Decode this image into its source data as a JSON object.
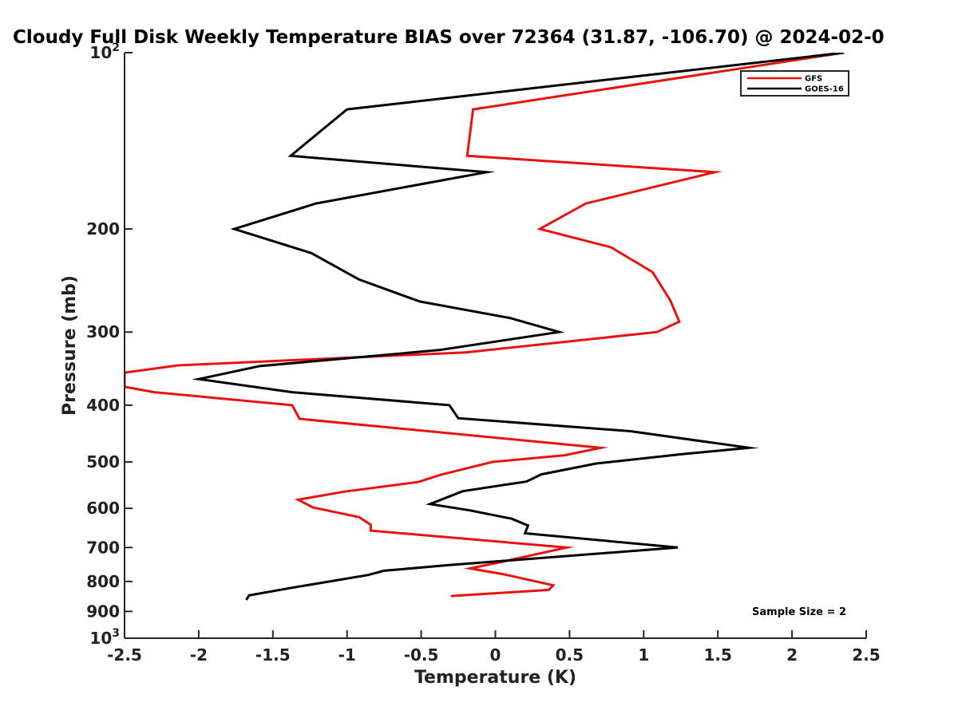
{
  "chart_data": {
    "type": "line",
    "title": "Cloudy Full Disk Weekly Temperature BIAS over 72364 (31.87, -106.70) @ 2024-02-0",
    "xlabel": "Temperature (K)",
    "ylabel": "Pressure (mb)",
    "xlim": [
      -2.5,
      2.5
    ],
    "ylim": [
      100,
      1000
    ],
    "y_scale": "log",
    "y_reversed": true,
    "x_ticks": [
      "-2.5",
      "-2",
      "-1.5",
      "-1",
      "-0.5",
      "0",
      "0.5",
      "1",
      "1.5",
      "2",
      "2.5"
    ],
    "y_ticks": [
      {
        "value": 100,
        "label": "10",
        "sup": "2"
      },
      {
        "value": 200,
        "label": "200",
        "sup": ""
      },
      {
        "value": 300,
        "label": "300",
        "sup": ""
      },
      {
        "value": 400,
        "label": "400",
        "sup": ""
      },
      {
        "value": 500,
        "label": "500",
        "sup": ""
      },
      {
        "value": 600,
        "label": "600",
        "sup": ""
      },
      {
        "value": 700,
        "label": "700",
        "sup": ""
      },
      {
        "value": 800,
        "label": "800",
        "sup": ""
      },
      {
        "value": 900,
        "label": "900",
        "sup": ""
      },
      {
        "value": 1000,
        "label": "10",
        "sup": "3"
      }
    ],
    "legend_position": "top-right",
    "annotation": "Sample Size = 2",
    "series": [
      {
        "name": "GFS",
        "color": "#e8130f",
        "points": [
          [
            2.35,
            100
          ],
          [
            -0.15,
            125
          ],
          [
            -0.19,
            150
          ],
          [
            1.48,
            160
          ],
          [
            0.61,
            181
          ],
          [
            0.3,
            200
          ],
          [
            0.78,
            215
          ],
          [
            1.06,
            237
          ],
          [
            1.18,
            265
          ],
          [
            1.24,
            288
          ],
          [
            1.09,
            300
          ],
          [
            -0.2,
            325
          ],
          [
            -2.14,
            342
          ],
          [
            -2.5,
            352
          ],
          [
            -2.5,
            372
          ],
          [
            -2.3,
            380
          ],
          [
            -1.37,
            400
          ],
          [
            -1.32,
            422
          ],
          [
            0.71,
            473
          ],
          [
            0.47,
            487
          ],
          [
            -0.02,
            500
          ],
          [
            -0.37,
            526
          ],
          [
            -0.52,
            541
          ],
          [
            -1.02,
            562
          ],
          [
            -1.33,
            580
          ],
          [
            -1.23,
            598
          ],
          [
            -0.92,
            621
          ],
          [
            -0.84,
            640
          ],
          [
            -0.84,
            655
          ],
          [
            0.48,
            700
          ],
          [
            0.04,
            741
          ],
          [
            -0.17,
            760
          ],
          [
            0.06,
            778
          ],
          [
            0.39,
            812
          ],
          [
            0.36,
            827
          ],
          [
            -0.3,
            847
          ]
        ]
      },
      {
        "name": "GOES-16",
        "color": "#000000",
        "points": [
          [
            2.35,
            100
          ],
          [
            -1.0,
            125
          ],
          [
            -1.38,
            150
          ],
          [
            -0.06,
            160
          ],
          [
            -1.21,
            181
          ],
          [
            -1.76,
            200
          ],
          [
            -1.24,
            220
          ],
          [
            -0.92,
            244
          ],
          [
            -0.51,
            266
          ],
          [
            0.1,
            284
          ],
          [
            0.43,
            300
          ],
          [
            -0.38,
            322
          ],
          [
            -1.59,
            343
          ],
          [
            -2.0,
            361
          ],
          [
            -1.37,
            380
          ],
          [
            -0.31,
            400
          ],
          [
            -0.25,
            421
          ],
          [
            0.91,
            443
          ],
          [
            1.71,
            473
          ],
          [
            1.26,
            485
          ],
          [
            0.68,
            503
          ],
          [
            0.31,
            525
          ],
          [
            0.21,
            540
          ],
          [
            -0.22,
            561
          ],
          [
            -0.44,
            590
          ],
          [
            -0.17,
            605
          ],
          [
            0.11,
            625
          ],
          [
            0.22,
            642
          ],
          [
            0.2,
            662
          ],
          [
            1.23,
            700
          ],
          [
            -0.31,
            750
          ],
          [
            -0.75,
            767
          ],
          [
            -0.86,
            780
          ],
          [
            -1.37,
            820
          ],
          [
            -1.66,
            845
          ],
          [
            -1.68,
            860
          ]
        ]
      }
    ]
  }
}
